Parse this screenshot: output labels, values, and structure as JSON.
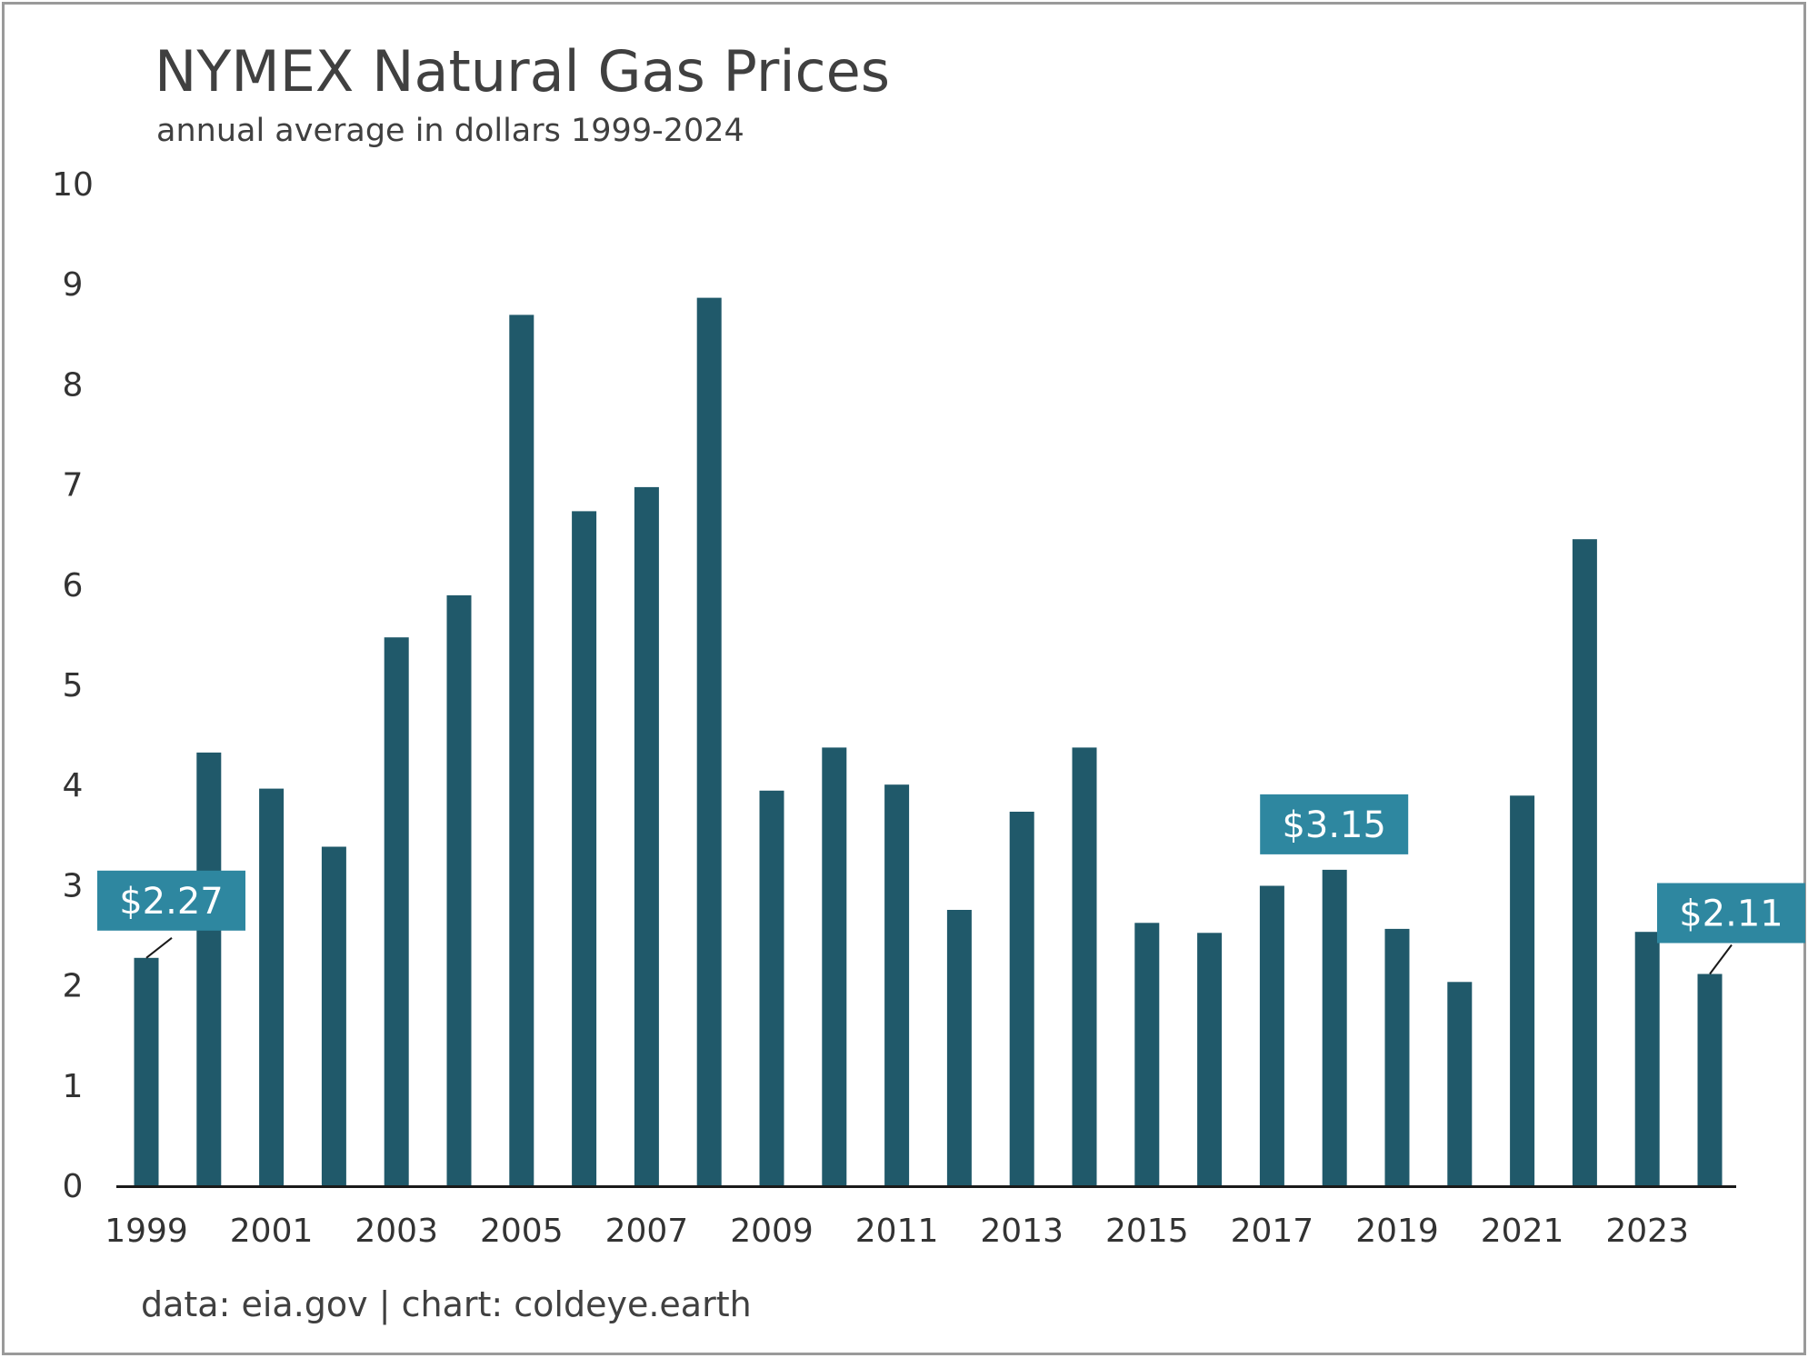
{
  "chart_data": {
    "type": "bar",
    "title": "NYMEX Natural Gas Prices",
    "subtitle": "annual average in dollars 1999-2024",
    "source": "data: eia.gov | chart: coldeye.earth",
    "categories": [
      "1999",
      "2000",
      "2001",
      "2002",
      "2003",
      "2004",
      "2005",
      "2006",
      "2007",
      "2008",
      "2009",
      "2010",
      "2011",
      "2012",
      "2013",
      "2014",
      "2015",
      "2016",
      "2017",
      "2018",
      "2019",
      "2020",
      "2021",
      "2022",
      "2023",
      "2024"
    ],
    "values": [
      2.27,
      4.32,
      3.96,
      3.38,
      5.47,
      5.89,
      8.69,
      6.73,
      6.97,
      8.86,
      3.94,
      4.37,
      4.0,
      2.75,
      3.73,
      4.37,
      2.62,
      2.52,
      2.99,
      3.15,
      2.56,
      2.03,
      3.89,
      6.45,
      2.53,
      2.11
    ],
    "x_tick_labels": [
      "1999",
      "2001",
      "2003",
      "2005",
      "2007",
      "2009",
      "2011",
      "2013",
      "2015",
      "2017",
      "2019",
      "2021",
      "2023"
    ],
    "y_tick_labels": [
      "0",
      "1",
      "2",
      "3",
      "4",
      "5",
      "6",
      "7",
      "8",
      "9",
      "10"
    ],
    "ylim": [
      0,
      10
    ],
    "xlabel": "",
    "ylabel": "",
    "grid": false,
    "legend": "none",
    "bar_color": "#20596a",
    "callouts": [
      {
        "category": "1999",
        "label": "$2.27"
      },
      {
        "category": "2018",
        "label": "$3.15"
      },
      {
        "category": "2024",
        "label": "$2.11"
      }
    ],
    "callout_color": "#2e87a0",
    "axis_color": "#1a1a1a"
  }
}
